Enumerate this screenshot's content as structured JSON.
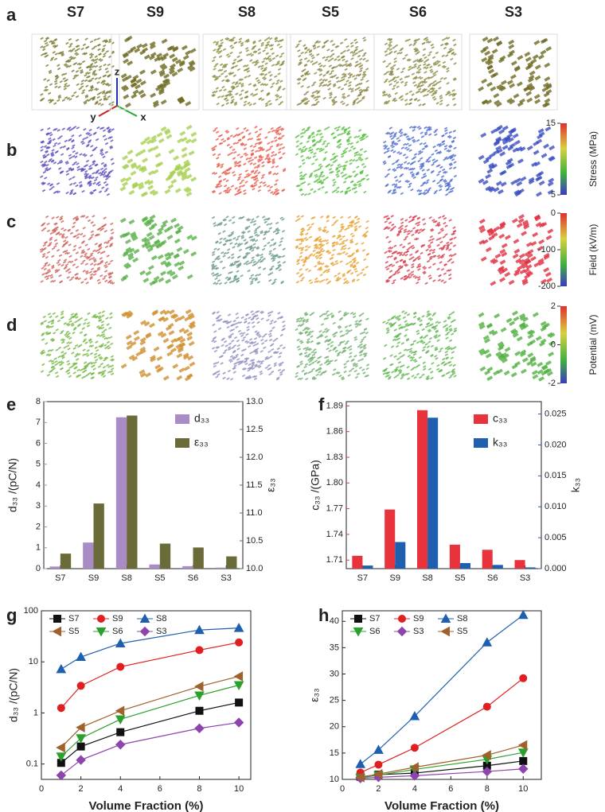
{
  "column_labels": [
    "S7",
    "S9",
    "S8",
    "S5",
    "S6",
    "S3"
  ],
  "panel_labels": [
    "a",
    "b",
    "c",
    "d",
    "e",
    "f",
    "g",
    "h"
  ],
  "axis_names": [
    "z",
    "y",
    "x"
  ],
  "colorbars": [
    {
      "title": "Stress (MPa)",
      "lim": [
        5,
        15
      ],
      "ticks": [
        5,
        15
      ]
    },
    {
      "title": "Field (kV/m)",
      "lim": [
        -200,
        0
      ],
      "ticks": [
        -200,
        -100,
        0
      ]
    },
    {
      "title": "Potential (mV)",
      "lim": [
        -2,
        2
      ],
      "ticks": [
        -2,
        0,
        2
      ]
    }
  ],
  "chart_data": [
    {
      "type": "bar",
      "categories": [
        "S7",
        "S9",
        "S8",
        "S5",
        "S6",
        "S3"
      ],
      "y_label": "d₃₃ /(pC/N)",
      "y2_label": "ε₃₃",
      "legend": "upper right",
      "ylim": [
        0,
        8
      ],
      "yticks": [
        0,
        1,
        2,
        3,
        4,
        5,
        6,
        7,
        8
      ],
      "y2lim": [
        10,
        13
      ],
      "y2ticks": [
        {
          "value": 10,
          "label": "10.0"
        },
        10.5,
        {
          "value": 11,
          "label": "11.0"
        },
        11.5,
        {
          "value": 12,
          "label": "12.0"
        },
        12.5,
        {
          "value": 13,
          "label": "13.0"
        }
      ],
      "series": [
        {
          "name": "d₃₃",
          "color": "#a98bc6",
          "values": [
            0.1,
            1.25,
            7.25,
            0.2,
            0.12,
            0.05
          ]
        },
        {
          "name": "ε₃₃",
          "color": "#6b6b3a",
          "axis": "y2",
          "values": [
            10.27,
            11.17,
            12.75,
            10.45,
            10.38,
            10.22
          ]
        }
      ]
    },
    {
      "type": "bar",
      "categories": [
        "S7",
        "S9",
        "S8",
        "S5",
        "S6",
        "S3"
      ],
      "y_label": "c₃₃ /(GPa)",
      "y2_label": "k₃₃",
      "legend": "upper right",
      "ylim": [
        1.7,
        1.895
      ],
      "yticks": [
        1.71,
        1.74,
        1.77,
        {
          "value": 1.8,
          "label": "1.80"
        },
        1.83,
        1.86,
        1.89
      ],
      "y2lim": [
        0,
        0.027
      ],
      "y2ticks": [
        {
          "value": 0,
          "label": "0.000"
        },
        0.005,
        {
          "value": 0.01,
          "label": "0.010"
        },
        0.015,
        {
          "value": 0.02,
          "label": "0.020"
        },
        0.025
      ],
      "series": [
        {
          "name": "c₃₃",
          "color": "#e8323c",
          "values": [
            1.715,
            1.769,
            1.885,
            1.728,
            1.722,
            1.71
          ]
        },
        {
          "name": "k₃₃",
          "color": "#1f5fb0",
          "axis": "y2",
          "values": [
            0.0005,
            0.0043,
            0.0244,
            0.0009,
            0.0006,
            0.0002
          ]
        }
      ]
    },
    {
      "type": "line",
      "x": [
        1,
        2,
        4,
        8,
        10
      ],
      "x_label": "Volume Fraction (%)",
      "y_label": "d₃₃ /(pC/N)",
      "xlim": [
        0,
        10.6
      ],
      "xticks": [
        0,
        2,
        4,
        6,
        8,
        10
      ],
      "yscale": "log",
      "ylim": [
        0.05,
        100
      ],
      "yticks": [
        0.1,
        1,
        10,
        100
      ],
      "legend": "upper left",
      "series": [
        {
          "name": "S7",
          "color": "#111111",
          "marker": "square",
          "values": [
            0.105,
            0.22,
            0.42,
            1.1,
            1.6
          ]
        },
        {
          "name": "S9",
          "color": "#e02020",
          "marker": "circle",
          "values": [
            1.25,
            3.4,
            8,
            17,
            24
          ]
        },
        {
          "name": "S8",
          "color": "#1f5fb0",
          "marker": "triangle",
          "values": [
            7.2,
            12.5,
            23,
            42,
            46
          ]
        },
        {
          "name": "S5",
          "color": "#a0622d",
          "marker": "ltriangle",
          "values": [
            0.21,
            0.52,
            1.1,
            3.3,
            5.2
          ]
        },
        {
          "name": "S6",
          "color": "#2ca02c",
          "marker": "dtriangle",
          "values": [
            0.14,
            0.32,
            0.75,
            2.2,
            3.5
          ]
        },
        {
          "name": "S3",
          "color": "#8e44ad",
          "marker": "diamond",
          "values": [
            0.06,
            0.12,
            0.24,
            0.5,
            0.65
          ]
        }
      ]
    },
    {
      "type": "line",
      "x": [
        1,
        2,
        4,
        8,
        10
      ],
      "x_label": "Volume Fraction (%)",
      "y_label": "ε₃₃",
      "xlim": [
        0,
        11
      ],
      "xticks": [
        0,
        2,
        4,
        6,
        8,
        10
      ],
      "ylim": [
        10,
        42
      ],
      "yticks": [
        10,
        15,
        20,
        25,
        30,
        35,
        40
      ],
      "legend": "upper left",
      "series": [
        {
          "name": "S7",
          "color": "#111111",
          "marker": "square",
          "values": [
            10.5,
            10.9,
            11.2,
            12.6,
            13.5
          ]
        },
        {
          "name": "S9",
          "color": "#e02020",
          "marker": "circle",
          "values": [
            11.3,
            12.8,
            16,
            23.8,
            29.2
          ]
        },
        {
          "name": "S8",
          "color": "#1f5fb0",
          "marker": "triangle",
          "values": [
            12.9,
            15.6,
            22,
            36,
            41.2
          ]
        },
        {
          "name": "S6",
          "color": "#2ca02c",
          "marker": "dtriangle",
          "values": [
            10.3,
            10.8,
            11.9,
            13.8,
            15.1
          ]
        },
        {
          "name": "S3",
          "color": "#8e44ad",
          "marker": "diamond",
          "values": [
            10.2,
            10.4,
            10.7,
            11.5,
            12
          ]
        },
        {
          "name": "S5",
          "color": "#a0622d",
          "marker": "ltriangle",
          "values": [
            10.4,
            11,
            12.3,
            14.6,
            16.5
          ]
        }
      ]
    }
  ]
}
